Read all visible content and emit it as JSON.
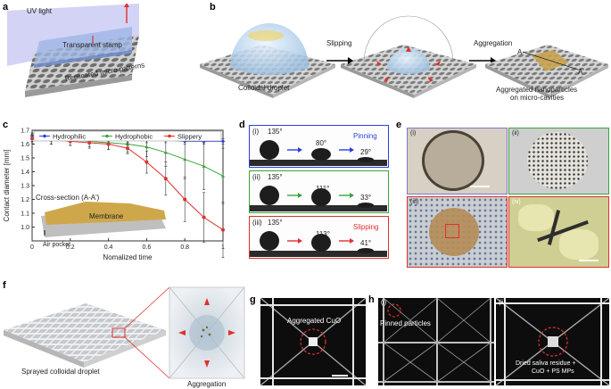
{
  "panels": {
    "a": {
      "label": "a",
      "uv": "UV light",
      "stamp": "Transparent stamp",
      "patterns": "Replicated micro patterns"
    },
    "b": {
      "label": "b",
      "droplet": "Colloidal droplet",
      "slipping": "Slipping",
      "aggregation": "Aggregation",
      "A": "A",
      "A2": "A'",
      "result1": "Aggregated nanoparticles",
      "result2": "on micro-cavities"
    },
    "c": {
      "label": "c",
      "cross": "Cross-section (A-A')",
      "membrane": "Membrane",
      "air": "Air pocket"
    },
    "d": {
      "label": "d",
      "rows": [
        {
          "id": "(i)",
          "a1": "135°",
          "a2": "80°",
          "a3": "29°",
          "status": "Pinning",
          "color": "#2b3de0"
        },
        {
          "id": "(ii)",
          "a1": "135°",
          "a2": "111°",
          "a3": "33°",
          "status": "",
          "color": "#3aa43a"
        },
        {
          "id": "(iii)",
          "a1": "135°",
          "a2": "113°",
          "a3": "41°",
          "status": "Slipping",
          "color": "#e0302b"
        }
      ]
    },
    "e": {
      "label": "e",
      "i": "(i)",
      "ii": "(ii)",
      "iii": "(iii)",
      "iv": "(iv)"
    },
    "f": {
      "label": "f",
      "sprayed": "Sprayed colloidal droplet",
      "aggregation": "Aggregation"
    },
    "g": {
      "label": "g",
      "text": "Aggregated CuO"
    },
    "h": {
      "label": "h",
      "i": "(i)",
      "ii": "(ii)",
      "pinned": "Pinned particles",
      "dried1": "Dried saliva residue +",
      "dried2": "CuO + PS MPs"
    }
  },
  "chart_data": {
    "type": "line",
    "xlabel": "Nomalized time",
    "ylabel": "Contact diameter [mm]",
    "xlim": [
      0,
      1
    ],
    "ylim": [
      0.9,
      1.7
    ],
    "xticks": [
      0,
      0.2,
      0.4,
      0.6,
      0.8,
      1
    ],
    "yticks": [
      1.0,
      1.1,
      1.2,
      1.3,
      1.4,
      1.5,
      1.6,
      1.7
    ],
    "xtick_labels": [
      "0",
      "0.2",
      "0.4",
      "0.6",
      "0.8",
      "1"
    ],
    "ytick_labels": [
      "1.0",
      "1.1",
      "1.2",
      "1.3",
      "1.4",
      "1.5",
      "1.6",
      "1.7"
    ],
    "x": [
      0,
      0.1,
      0.2,
      0.3,
      0.4,
      0.5,
      0.6,
      0.7,
      0.8,
      0.9,
      1.0
    ],
    "legend_placement": "top",
    "series": [
      {
        "name": "Hydrophilic",
        "color": "#2b3de0",
        "values": [
          1.66,
          1.65,
          1.65,
          1.64,
          1.64,
          1.63,
          1.63,
          1.63,
          1.62,
          1.62,
          1.62
        ],
        "err": [
          0.02,
          0.02,
          0.02,
          0.02,
          0.02,
          0.02,
          0.02,
          0.02,
          0.02,
          0.02,
          0.02
        ]
      },
      {
        "name": "Hydrophobic",
        "color": "#3aa43a",
        "values": [
          1.65,
          1.64,
          1.63,
          1.62,
          1.61,
          1.6,
          1.58,
          1.54,
          1.49,
          1.44,
          1.37
        ],
        "err": [
          0.03,
          0.04,
          0.04,
          0.05,
          0.05,
          0.06,
          0.07,
          0.1,
          0.14,
          0.17,
          0.2
        ]
      },
      {
        "name": "Slippery",
        "color": "#e0302b",
        "values": [
          1.64,
          1.63,
          1.62,
          1.61,
          1.6,
          1.57,
          1.47,
          1.35,
          1.2,
          1.07,
          0.98
        ],
        "err": [
          0.03,
          0.03,
          0.03,
          0.03,
          0.04,
          0.04,
          0.08,
          0.12,
          0.16,
          0.18,
          0.2
        ]
      }
    ]
  }
}
